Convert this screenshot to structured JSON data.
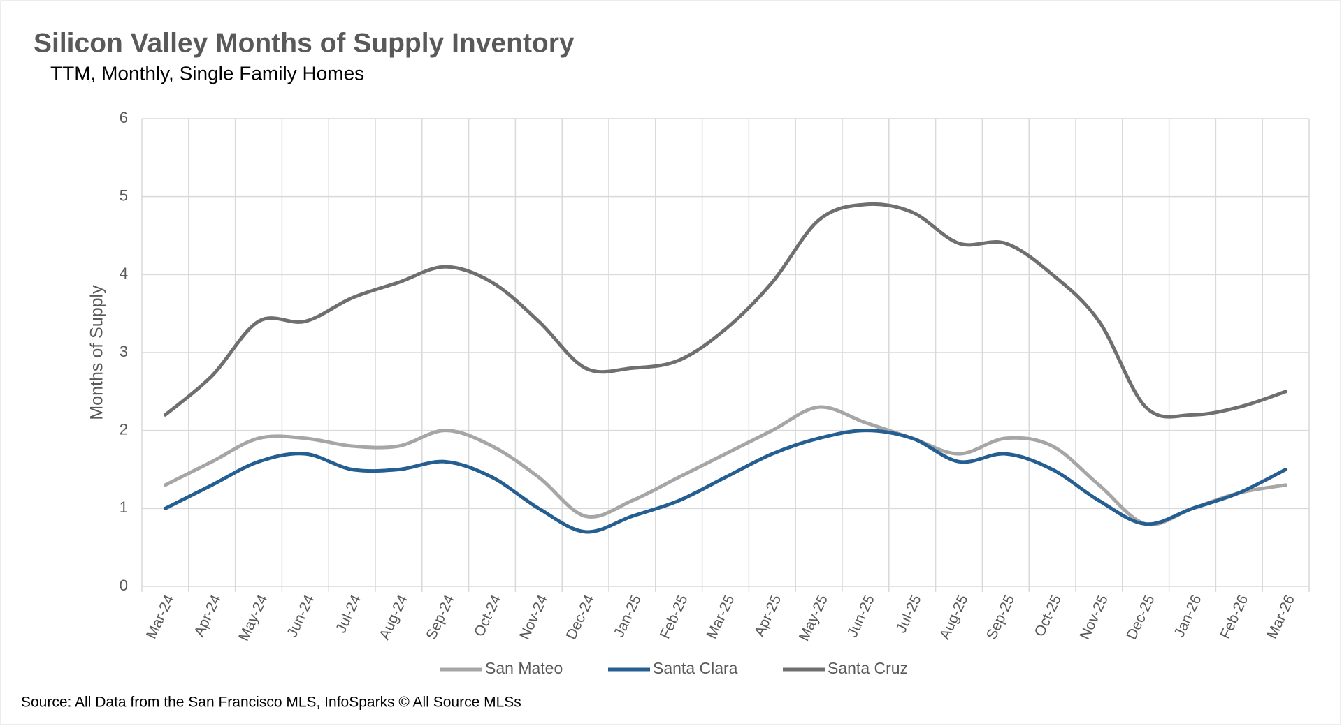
{
  "chart_data": {
    "type": "line",
    "title": "Silicon Valley Months of Supply Inventory",
    "subtitle": "TTM, Monthly, Single Family Homes",
    "y_label": "Months of Supply",
    "source": "Source: All Data from the San Francisco MLS, InfoSparks © All Source MLSs",
    "categories": [
      "Mar-24",
      "Apr-24",
      "May-24",
      "Jun-24",
      "Jul-24",
      "Aug-24",
      "Sep-24",
      "Oct-24",
      "Nov-24",
      "Dec-24",
      "Jan-25",
      "Feb-25",
      "Mar-25",
      "Apr-25",
      "May-25",
      "Jun-25",
      "Jul-25",
      "Aug-25",
      "Sep-25",
      "Oct-25",
      "Nov-25",
      "Dec-25",
      "Jan-26",
      "Feb-26",
      "Mar-26"
    ],
    "series": [
      {
        "name": "San Mateo",
        "color": "#a6a6a6",
        "values": [
          1.3,
          1.6,
          1.9,
          1.9,
          1.8,
          1.8,
          2.0,
          1.8,
          1.4,
          0.9,
          1.1,
          1.4,
          1.7,
          2.0,
          2.3,
          2.1,
          1.9,
          1.7,
          1.9,
          1.8,
          1.3,
          0.8,
          1.0,
          1.2,
          1.3
        ]
      },
      {
        "name": "Santa Clara",
        "color": "#255e91",
        "values": [
          1.0,
          1.3,
          1.6,
          1.7,
          1.5,
          1.5,
          1.6,
          1.4,
          1.0,
          0.7,
          0.9,
          1.1,
          1.4,
          1.7,
          1.9,
          2.0,
          1.9,
          1.6,
          1.7,
          1.5,
          1.1,
          0.8,
          1.0,
          1.2,
          1.5
        ]
      },
      {
        "name": "Santa Cruz",
        "color": "#6f6f6f",
        "values": [
          2.2,
          2.7,
          3.4,
          3.4,
          3.7,
          3.9,
          4.1,
          3.9,
          3.4,
          2.8,
          2.8,
          2.9,
          3.3,
          3.9,
          4.7,
          4.9,
          4.8,
          4.4,
          4.4,
          4.0,
          3.4,
          2.3,
          2.2,
          2.3,
          2.5
        ]
      }
    ],
    "ylim": [
      0,
      6
    ],
    "yticks": [
      0,
      1,
      2,
      3,
      4,
      5,
      6
    ],
    "grid": true,
    "legend": "bottom"
  }
}
